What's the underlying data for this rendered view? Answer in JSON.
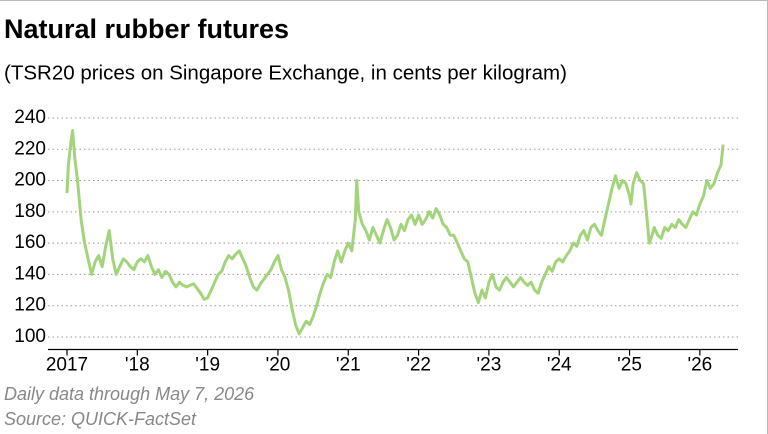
{
  "chart_data": {
    "type": "line",
    "title": "Natural rubber futures",
    "subtitle": "(TSR20 prices on Singapore Exchange, in cents per kilogram)",
    "notes": [
      "Daily data through May 7, 2026",
      "Source: QUICK-FactSet"
    ],
    "xlim": [
      2017,
      2026.4
    ],
    "ylim": [
      92,
      244
    ],
    "xticks": [
      2017,
      {
        "value": 2018,
        "label": "'18"
      },
      {
        "value": 2019,
        "label": "'19"
      },
      {
        "value": 2020,
        "label": "'20"
      },
      {
        "value": 2021,
        "label": "'21"
      },
      {
        "value": 2022,
        "label": "'22"
      },
      {
        "value": 2023,
        "label": "'23"
      },
      {
        "value": 2024,
        "label": "'24"
      },
      {
        "value": 2025,
        "label": "'25"
      },
      {
        "value": 2026,
        "label": "'26"
      }
    ],
    "yticks": [
      100,
      120,
      140,
      160,
      180,
      200,
      220,
      240
    ],
    "grid": true,
    "series": [
      {
        "color": "#a3d47c",
        "x": [
          2017.0,
          2017.02,
          2017.05,
          2017.08,
          2017.11,
          2017.15,
          2017.2,
          2017.25,
          2017.3,
          2017.35,
          2017.4,
          2017.45,
          2017.5,
          2017.55,
          2017.6,
          2017.65,
          2017.7,
          2017.75,
          2017.8,
          2017.85,
          2017.9,
          2017.95,
          2018.0,
          2018.05,
          2018.1,
          2018.15,
          2018.2,
          2018.25,
          2018.3,
          2018.35,
          2018.4,
          2018.45,
          2018.5,
          2018.55,
          2018.6,
          2018.65,
          2018.7,
          2018.8,
          2018.9,
          2018.95,
          2019.0,
          2019.05,
          2019.1,
          2019.15,
          2019.2,
          2019.25,
          2019.3,
          2019.35,
          2019.4,
          2019.45,
          2019.5,
          2019.55,
          2019.6,
          2019.65,
          2019.7,
          2019.75,
          2019.8,
          2019.85,
          2019.9,
          2019.95,
          2020.0,
          2020.05,
          2020.1,
          2020.15,
          2020.2,
          2020.25,
          2020.3,
          2020.35,
          2020.4,
          2020.45,
          2020.5,
          2020.55,
          2020.6,
          2020.65,
          2020.7,
          2020.75,
          2020.8,
          2020.85,
          2020.9,
          2020.95,
          2021.0,
          2021.05,
          2021.1,
          2021.12,
          2021.15,
          2021.2,
          2021.25,
          2021.3,
          2021.35,
          2021.4,
          2021.45,
          2021.5,
          2021.55,
          2021.6,
          2021.65,
          2021.7,
          2021.75,
          2021.8,
          2021.85,
          2021.9,
          2021.95,
          2022.0,
          2022.05,
          2022.1,
          2022.15,
          2022.2,
          2022.25,
          2022.3,
          2022.35,
          2022.4,
          2022.45,
          2022.5,
          2022.55,
          2022.6,
          2022.65,
          2022.7,
          2022.75,
          2022.8,
          2022.85,
          2022.9,
          2022.95,
          2023.0,
          2023.05,
          2023.1,
          2023.15,
          2023.2,
          2023.25,
          2023.3,
          2023.35,
          2023.4,
          2023.45,
          2023.5,
          2023.55,
          2023.6,
          2023.65,
          2023.7,
          2023.75,
          2023.8,
          2023.85,
          2023.9,
          2023.95,
          2024.0,
          2024.05,
          2024.1,
          2024.15,
          2024.2,
          2024.25,
          2024.3,
          2024.35,
          2024.4,
          2024.45,
          2024.5,
          2024.55,
          2024.6,
          2024.65,
          2024.7,
          2024.75,
          2024.8,
          2024.85,
          2024.9,
          2024.95,
          2025.0,
          2025.02,
          2025.05,
          2025.1,
          2025.15,
          2025.2,
          2025.25,
          2025.28,
          2025.32,
          2025.35,
          2025.4,
          2025.45,
          2025.5,
          2025.55,
          2025.6,
          2025.65,
          2025.7,
          2025.75,
          2025.8,
          2025.85,
          2025.9,
          2025.95,
          2026.0,
          2026.05,
          2026.1,
          2026.15,
          2026.2,
          2026.25,
          2026.3,
          2026.33
        ],
        "values": [
          192,
          210,
          222,
          232,
          215,
          200,
          175,
          160,
          150,
          140,
          148,
          152,
          145,
          158,
          168,
          150,
          140,
          145,
          150,
          148,
          145,
          143,
          148,
          150,
          148,
          152,
          145,
          140,
          143,
          138,
          142,
          140,
          135,
          132,
          135,
          133,
          132,
          134,
          128,
          124,
          125,
          130,
          135,
          140,
          142,
          148,
          152,
          150,
          153,
          155,
          150,
          145,
          138,
          132,
          130,
          134,
          137,
          140,
          143,
          148,
          152,
          143,
          138,
          130,
          118,
          108,
          102,
          106,
          110,
          108,
          113,
          120,
          128,
          135,
          140,
          138,
          148,
          155,
          148,
          155,
          160,
          155,
          175,
          200,
          180,
          172,
          168,
          162,
          170,
          165,
          160,
          168,
          175,
          170,
          162,
          165,
          172,
          168,
          175,
          178,
          172,
          178,
          172,
          175,
          180,
          176,
          182,
          178,
          172,
          170,
          165,
          165,
          160,
          155,
          150,
          148,
          138,
          128,
          122,
          130,
          125,
          135,
          140,
          132,
          130,
          135,
          138,
          135,
          132,
          135,
          138,
          135,
          133,
          135,
          130,
          128,
          135,
          140,
          145,
          142,
          148,
          150,
          148,
          152,
          155,
          160,
          158,
          165,
          168,
          162,
          170,
          172,
          168,
          165,
          175,
          185,
          195,
          203,
          195,
          200,
          198,
          190,
          185,
          198,
          205,
          200,
          198,
          175,
          160,
          165,
          170,
          165,
          163,
          170,
          168,
          172,
          170,
          175,
          172,
          170,
          175,
          180,
          178,
          185,
          190,
          200,
          195,
          198,
          205,
          210,
          223
        ]
      }
    ]
  }
}
